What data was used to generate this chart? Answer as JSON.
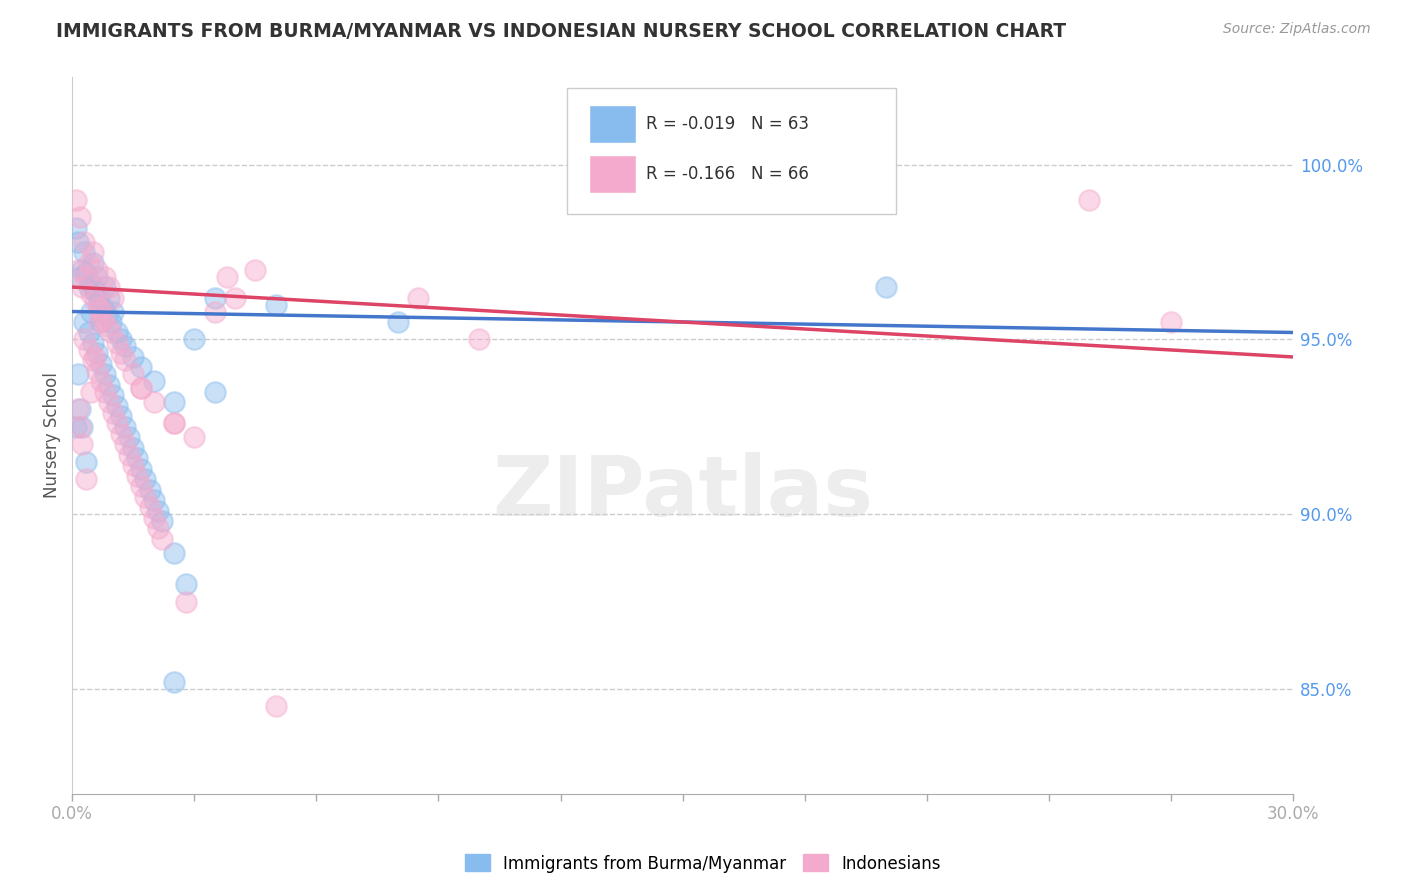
{
  "title": "IMMIGRANTS FROM BURMA/MYANMAR VS INDONESIAN NURSERY SCHOOL CORRELATION CHART",
  "source": "Source: ZipAtlas.com",
  "ylabel": "Nursery School",
  "ylabel_right_ticks": [
    85.0,
    90.0,
    95.0,
    100.0
  ],
  "xmin": 0.0,
  "xmax": 30.0,
  "ymin": 82.0,
  "ymax": 102.5,
  "legend_blue_r": "R = -0.019",
  "legend_blue_n": "N = 63",
  "legend_pink_r": "R = -0.166",
  "legend_pink_n": "N = 66",
  "legend_label_blue": "Immigrants from Burma/Myanmar",
  "legend_label_pink": "Indonesians",
  "blue_color": "#88BBEE",
  "pink_color": "#F4AACC",
  "blue_line_color": "#4477CC",
  "pink_line_color": "#DD4466",
  "watermark": "ZIPatlas",
  "blue_scatter_x": [
    0.15,
    0.3,
    0.5,
    0.2,
    0.4,
    0.6,
    0.25,
    0.45,
    0.65,
    0.35,
    0.55,
    0.75,
    0.85,
    0.1,
    0.7,
    0.95,
    1.0,
    0.8,
    0.9,
    1.1,
    1.2,
    1.3,
    1.5,
    0.3,
    0.4,
    0.5,
    0.6,
    0.7,
    0.8,
    0.9,
    1.0,
    1.1,
    1.2,
    1.3,
    1.4,
    1.5,
    1.6,
    1.7,
    1.8,
    1.9,
    2.0,
    2.1,
    2.2,
    2.5,
    3.0,
    0.2,
    0.25,
    0.35,
    0.15,
    0.55,
    0.65,
    0.45,
    3.5,
    3.5,
    5.0,
    8.0,
    2.5,
    20.0,
    0.1,
    1.7,
    2.0,
    2.5,
    2.8
  ],
  "blue_scatter_y": [
    97.8,
    97.5,
    97.2,
    96.8,
    96.5,
    96.8,
    97.0,
    96.6,
    96.2,
    96.9,
    96.4,
    95.9,
    95.7,
    98.2,
    95.5,
    95.5,
    95.8,
    96.5,
    96.2,
    95.2,
    95.0,
    94.8,
    94.5,
    95.5,
    95.2,
    94.9,
    94.6,
    94.3,
    94.0,
    93.7,
    93.4,
    93.1,
    92.8,
    92.5,
    92.2,
    91.9,
    91.6,
    91.3,
    91.0,
    90.7,
    90.4,
    90.1,
    89.8,
    93.2,
    95.0,
    93.0,
    92.5,
    91.5,
    94.0,
    96.4,
    96.0,
    95.8,
    96.2,
    93.5,
    96.0,
    95.5,
    85.2,
    96.5,
    92.5,
    94.2,
    93.8,
    88.9,
    88.0
  ],
  "pink_scatter_x": [
    0.15,
    0.2,
    0.3,
    0.4,
    0.5,
    0.6,
    0.25,
    0.35,
    0.45,
    0.55,
    0.65,
    0.75,
    0.85,
    0.95,
    1.0,
    0.1,
    0.7,
    1.1,
    1.2,
    1.3,
    1.5,
    0.3,
    0.4,
    0.5,
    0.6,
    0.7,
    0.8,
    0.9,
    1.0,
    1.1,
    1.2,
    1.3,
    1.4,
    1.5,
    1.6,
    1.7,
    1.8,
    1.9,
    2.0,
    2.1,
    2.2,
    2.5,
    3.0,
    0.2,
    0.25,
    0.35,
    0.15,
    0.55,
    0.45,
    4.5,
    3.8,
    8.5,
    25.0,
    27.0,
    5.0,
    10.0,
    1.7,
    2.0,
    2.5,
    2.8,
    3.5,
    4.0,
    0.8,
    0.9,
    1.7,
    0.65
  ],
  "pink_scatter_y": [
    97.0,
    98.5,
    97.8,
    97.2,
    97.5,
    97.0,
    96.5,
    96.8,
    96.3,
    96.1,
    95.9,
    95.6,
    95.4,
    95.2,
    96.2,
    99.0,
    95.8,
    94.9,
    94.6,
    94.4,
    94.0,
    95.0,
    94.7,
    94.4,
    94.1,
    93.8,
    93.5,
    93.2,
    92.9,
    92.6,
    92.3,
    92.0,
    91.7,
    91.4,
    91.1,
    90.8,
    90.5,
    90.2,
    89.9,
    89.6,
    89.3,
    92.6,
    92.2,
    92.5,
    92.0,
    91.0,
    93.0,
    94.5,
    93.5,
    97.0,
    96.8,
    96.2,
    99.0,
    95.5,
    84.5,
    95.0,
    93.6,
    93.2,
    92.6,
    87.5,
    95.8,
    96.2,
    96.8,
    96.5,
    93.6,
    95.5
  ],
  "blue_trend_x": [
    0.0,
    30.0
  ],
  "blue_trend_y": [
    95.8,
    95.2
  ],
  "pink_trend_x": [
    0.0,
    30.0
  ],
  "pink_trend_y": [
    96.5,
    94.5
  ]
}
